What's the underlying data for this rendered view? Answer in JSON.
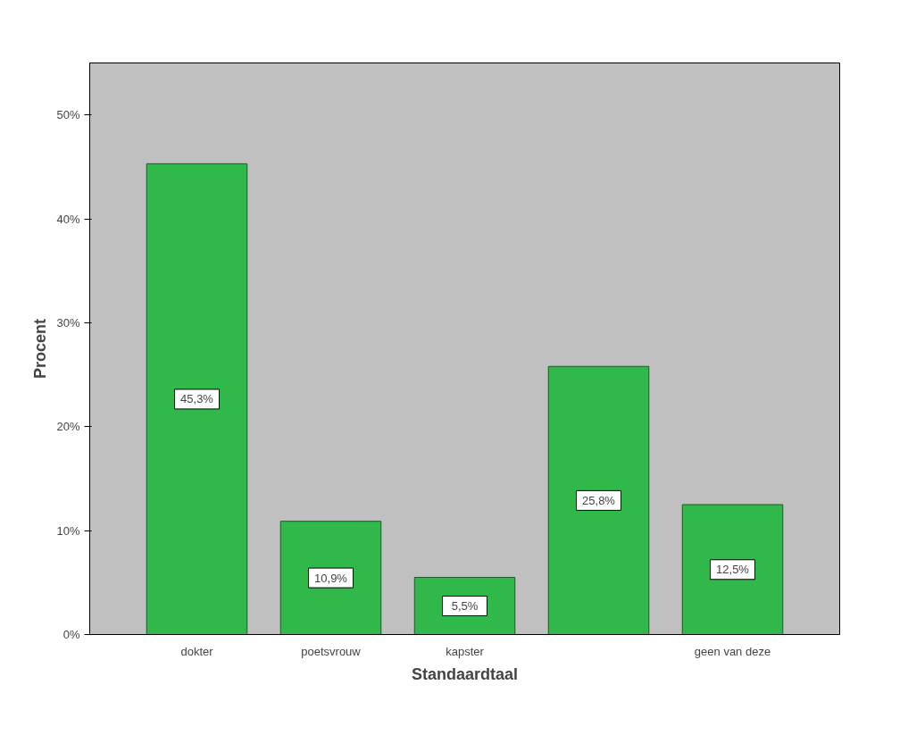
{
  "chart_data": {
    "type": "bar",
    "xlabel": "Standaardtaal",
    "ylabel": "Procent",
    "categories": [
      "dokter",
      "poetsvrouw",
      "kapster",
      null,
      "geen van deze"
    ],
    "values": [
      45.3,
      10.9,
      5.5,
      25.8,
      12.5
    ],
    "value_labels": [
      "45,3%",
      "10,9%",
      "5,5%",
      "25,8%",
      "12,5%"
    ],
    "color": "#31b84a",
    "ylim": [
      0,
      55
    ],
    "yticks": [
      {
        "value": 0,
        "label": "0%"
      },
      {
        "value": 10,
        "label": "10%"
      },
      {
        "value": 20,
        "label": "20%"
      },
      {
        "value": 30,
        "label": "30%"
      },
      {
        "value": 40,
        "label": "40%"
      },
      {
        "value": 50,
        "label": "50%"
      }
    ],
    "grid": false
  }
}
